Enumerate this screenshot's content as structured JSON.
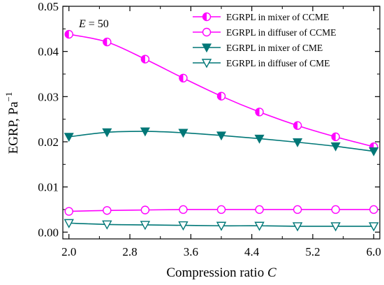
{
  "chart_data": {
    "type": "line",
    "annotation": {
      "symbol": "E",
      "text": " = 50"
    },
    "xlabel": "Compression ratio",
    "xlabel_var": "C",
    "ylabel": "EGRP, Pa",
    "ylabel_sup": "−1",
    "xlim": [
      1.92,
      6.08
    ],
    "ylim": [
      -0.0015,
      0.05
    ],
    "x_ticks": [
      2.0,
      2.8,
      3.6,
      4.4,
      5.2,
      6.0
    ],
    "x_tick_labels": [
      "2.0",
      "2.8",
      "3.6",
      "4.4",
      "5.2",
      "6.0"
    ],
    "y_ticks": [
      0.0,
      0.01,
      0.02,
      0.03,
      0.04,
      0.05
    ],
    "y_tick_labels": [
      "0.00",
      "0.01",
      "0.02",
      "0.03",
      "0.04",
      "0.05"
    ],
    "grid": false,
    "legend_position": "top-right",
    "x": [
      2.0,
      2.5,
      3.0,
      3.5,
      4.0,
      4.5,
      5.0,
      5.5,
      6.0
    ],
    "series": [
      {
        "name": "EGRPL in mixer of CCME",
        "color": "#ff00ff",
        "marker": "half-filled-circle",
        "values": [
          0.0438,
          0.0421,
          0.0383,
          0.0341,
          0.0301,
          0.0266,
          0.0236,
          0.0211,
          0.0189
        ]
      },
      {
        "name": "EGRPL in diffuser of CCME",
        "color": "#ff00ff",
        "marker": "open-circle",
        "values": [
          0.0046,
          0.0048,
          0.0049,
          0.005,
          0.005,
          0.005,
          0.005,
          0.005,
          0.005
        ]
      },
      {
        "name": "EGRPL in mixer of CME",
        "color": "#007777",
        "marker": "filled-down-triangle",
        "values": [
          0.0211,
          0.0221,
          0.0223,
          0.022,
          0.0214,
          0.0207,
          0.0199,
          0.019,
          0.0179
        ]
      },
      {
        "name": "EGRPL in diffuser of CME",
        "color": "#007777",
        "marker": "open-down-triangle",
        "values": [
          0.002,
          0.0017,
          0.0016,
          0.0015,
          0.0014,
          0.0014,
          0.0013,
          0.0013,
          0.0013
        ]
      }
    ]
  }
}
